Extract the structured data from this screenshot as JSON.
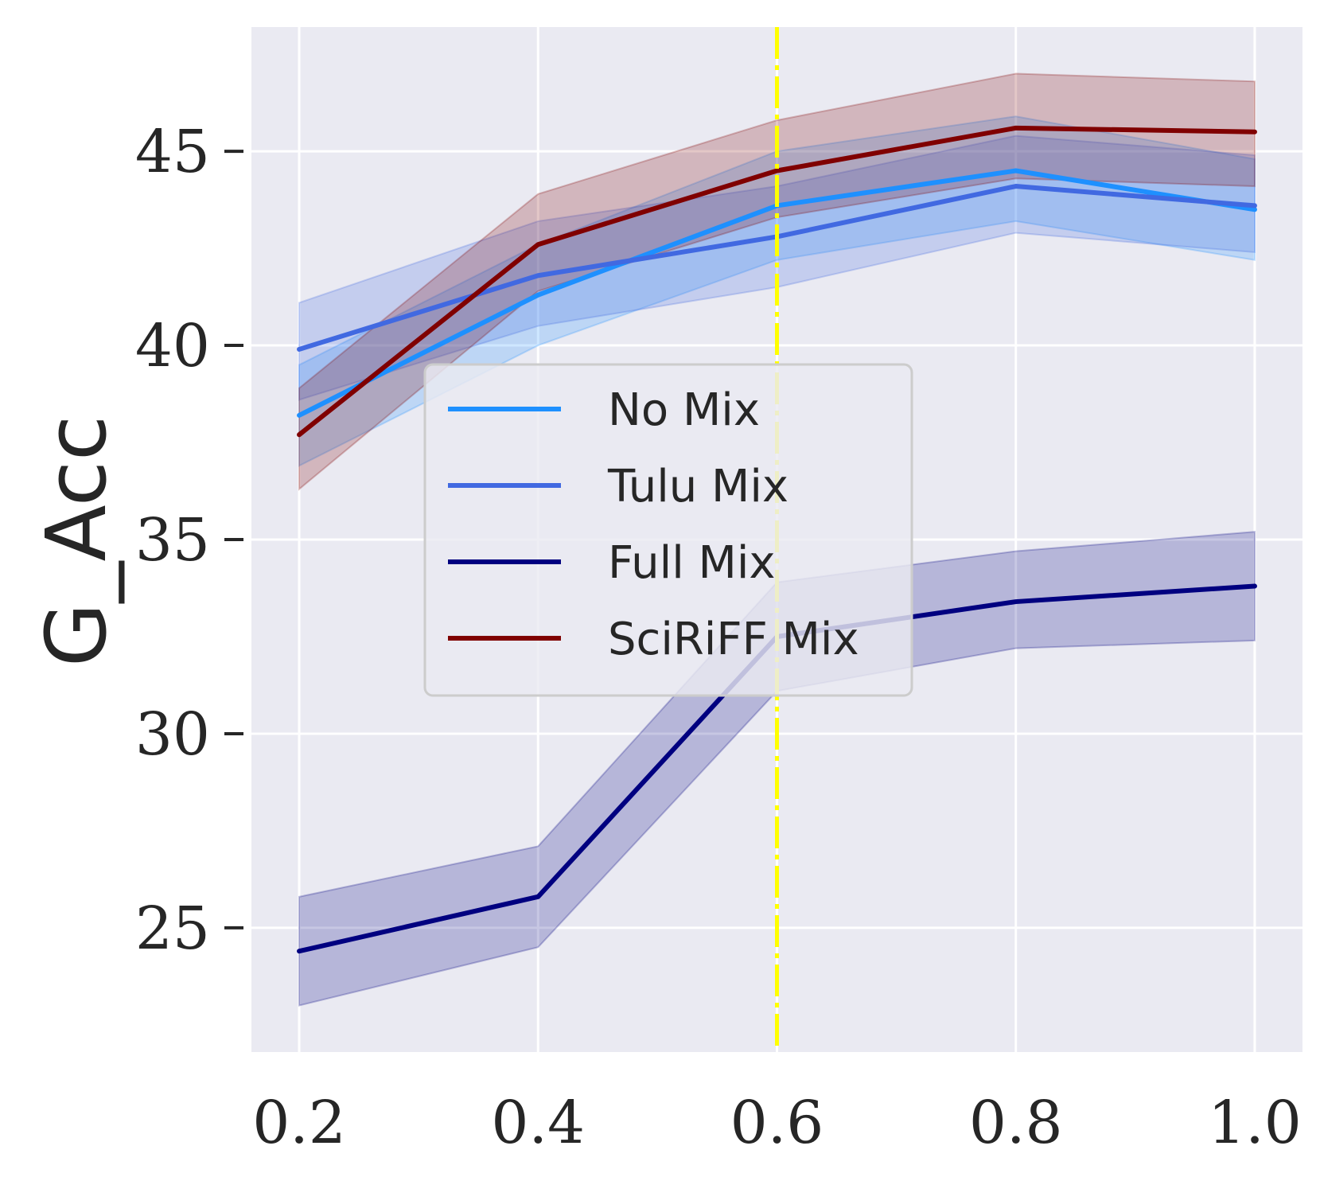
{
  "chart_data": {
    "type": "line",
    "title": "",
    "xlabel": "",
    "ylabel": "G_Acc",
    "x": [
      0.2,
      0.4,
      0.6,
      0.8,
      1.0
    ],
    "x_tick_labels": [
      "0.2",
      "0.4",
      "0.6",
      "0.8",
      "1.0"
    ],
    "y_ticks": [
      25,
      30,
      35,
      40,
      45
    ],
    "y_tick_labels": [
      "25",
      "30",
      "35",
      "40",
      "45"
    ],
    "xlim": [
      0.16,
      1.04
    ],
    "ylim": [
      21.8,
      48.2
    ],
    "grid": true,
    "legend_position": "center",
    "vline": {
      "x": 0.6,
      "color": "#ffff00",
      "style": "dash-dot"
    },
    "series": [
      {
        "name": "No Mix",
        "color": "#1e90ff",
        "values": [
          38.2,
          41.3,
          43.6,
          44.5,
          43.5
        ],
        "lower": [
          36.9,
          40.0,
          42.2,
          43.2,
          42.2
        ],
        "upper": [
          39.5,
          42.6,
          45.0,
          45.9,
          44.8
        ]
      },
      {
        "name": "Tulu Mix",
        "color": "#4169e1",
        "values": [
          39.9,
          41.8,
          42.8,
          44.1,
          43.6
        ],
        "lower": [
          38.6,
          40.5,
          41.5,
          42.9,
          42.4
        ],
        "upper": [
          41.1,
          43.2,
          44.1,
          45.4,
          44.9
        ]
      },
      {
        "name": "Full Mix",
        "color": "#000080",
        "values": [
          24.4,
          25.8,
          32.5,
          33.4,
          33.8
        ],
        "lower": [
          23.0,
          24.5,
          31.1,
          32.2,
          32.4
        ],
        "upper": [
          25.8,
          27.1,
          33.9,
          34.7,
          35.2
        ]
      },
      {
        "name": "SciRiFF Mix",
        "color": "#800000",
        "values": [
          37.7,
          42.6,
          44.5,
          45.6,
          45.5
        ],
        "lower": [
          36.3,
          41.4,
          43.3,
          44.3,
          44.1
        ],
        "upper": [
          38.9,
          43.9,
          45.8,
          47.0,
          46.8
        ]
      }
    ]
  }
}
